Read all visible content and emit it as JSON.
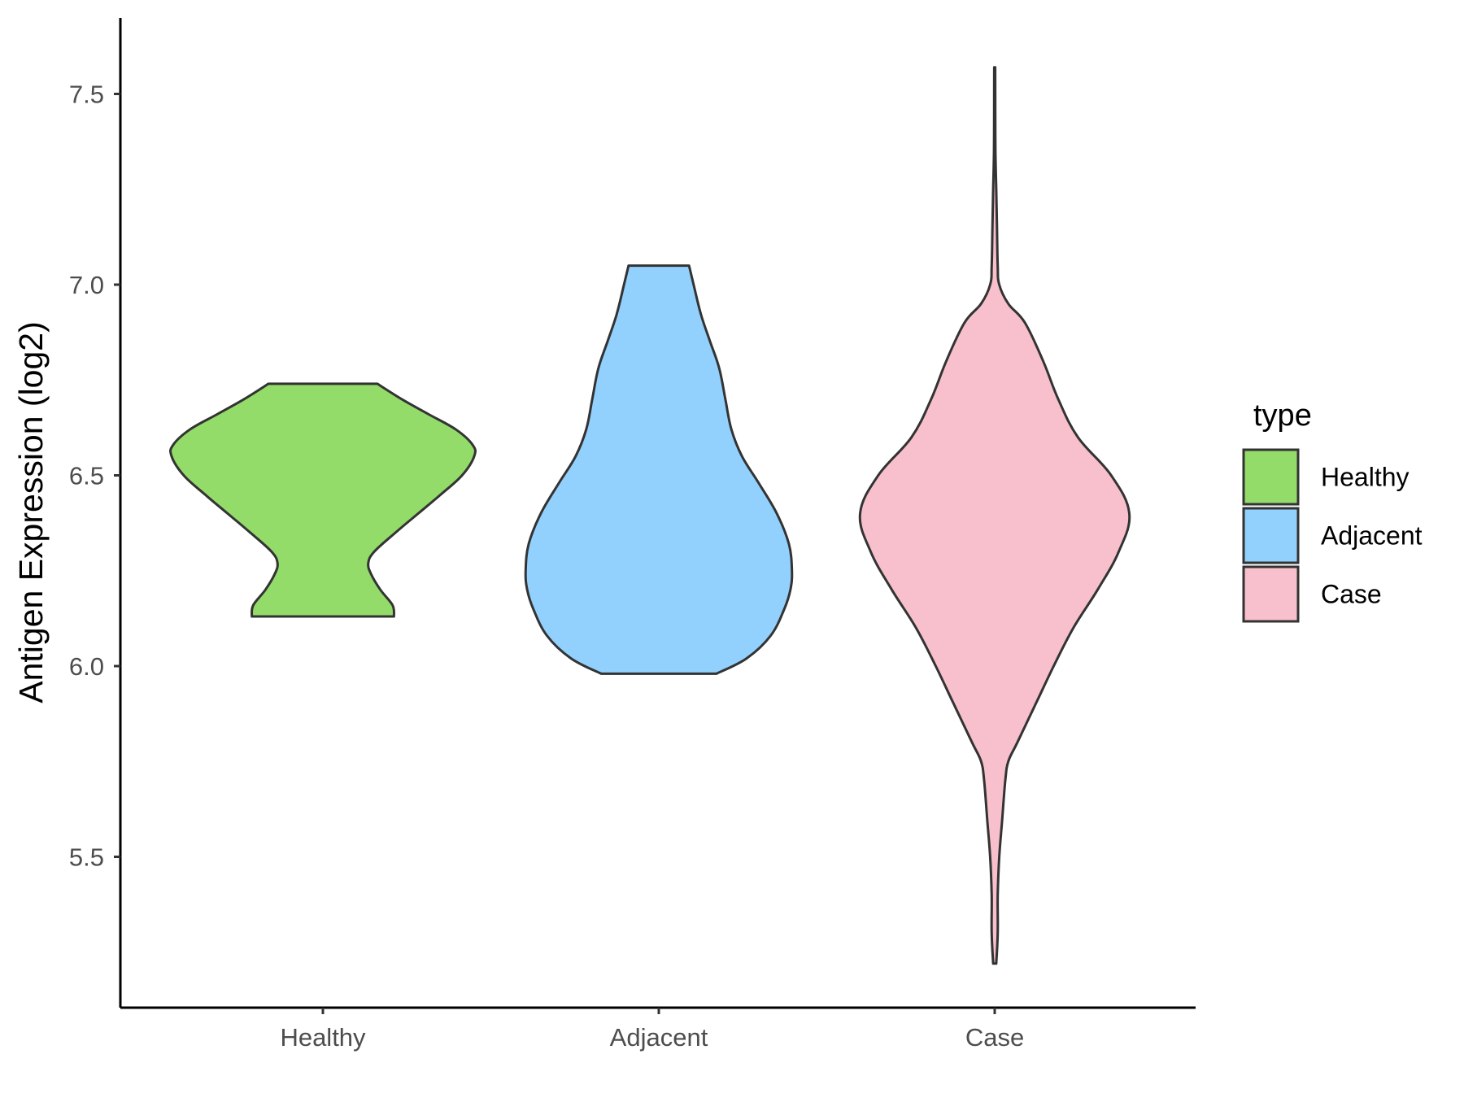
{
  "chart_data": {
    "type": "violin",
    "title": "",
    "xlabel": "",
    "ylabel": "Antigen Expression (log2)",
    "ylim": [
      5.15,
      7.73
    ],
    "yticks": [
      5.5,
      6.0,
      6.5,
      7.0,
      7.5
    ],
    "ytick_labels": [
      "5.5",
      "6.0",
      "6.5",
      "7.0",
      "7.5"
    ],
    "categories": [
      "Healthy",
      "Adjacent",
      "Case"
    ],
    "grid": false,
    "legend": {
      "title": "type",
      "position": "right",
      "entries": [
        "Healthy",
        "Adjacent",
        "Case"
      ]
    },
    "series": [
      {
        "name": "Healthy",
        "color": "#93dc69",
        "range": [
          6.13,
          6.74
        ],
        "density": [
          [
            6.13,
            0.47
          ],
          [
            6.16,
            0.46
          ],
          [
            6.2,
            0.38
          ],
          [
            6.24,
            0.32
          ],
          [
            6.27,
            0.3
          ],
          [
            6.3,
            0.34
          ],
          [
            6.35,
            0.48
          ],
          [
            6.4,
            0.63
          ],
          [
            6.45,
            0.78
          ],
          [
            6.5,
            0.92
          ],
          [
            6.55,
            1.0
          ],
          [
            6.58,
            0.99
          ],
          [
            6.62,
            0.88
          ],
          [
            6.66,
            0.7
          ],
          [
            6.7,
            0.52
          ],
          [
            6.74,
            0.36
          ]
        ]
      },
      {
        "name": "Adjacent",
        "color": "#92d1fe",
        "range": [
          5.98,
          7.05
        ],
        "density": [
          [
            5.98,
            0.38
          ],
          [
            6.02,
            0.58
          ],
          [
            6.08,
            0.74
          ],
          [
            6.15,
            0.83
          ],
          [
            6.2,
            0.87
          ],
          [
            6.25,
            0.88
          ],
          [
            6.32,
            0.86
          ],
          [
            6.4,
            0.78
          ],
          [
            6.48,
            0.66
          ],
          [
            6.55,
            0.55
          ],
          [
            6.62,
            0.48
          ],
          [
            6.7,
            0.44
          ],
          [
            6.78,
            0.4
          ],
          [
            6.85,
            0.34
          ],
          [
            6.92,
            0.28
          ],
          [
            7.0,
            0.23
          ],
          [
            7.05,
            0.2
          ]
        ]
      },
      {
        "name": "Case",
        "color": "#f7c0cc",
        "range": [
          5.22,
          7.57
        ],
        "density": [
          [
            5.22,
            0.01
          ],
          [
            5.3,
            0.02
          ],
          [
            5.4,
            0.02
          ],
          [
            5.5,
            0.03
          ],
          [
            5.6,
            0.05
          ],
          [
            5.7,
            0.07
          ],
          [
            5.75,
            0.09
          ],
          [
            5.8,
            0.15
          ],
          [
            5.9,
            0.27
          ],
          [
            6.0,
            0.39
          ],
          [
            6.1,
            0.52
          ],
          [
            6.2,
            0.68
          ],
          [
            6.3,
            0.82
          ],
          [
            6.4,
            0.89
          ],
          [
            6.5,
            0.77
          ],
          [
            6.6,
            0.55
          ],
          [
            6.7,
            0.42
          ],
          [
            6.8,
            0.32
          ],
          [
            6.9,
            0.2
          ],
          [
            6.95,
            0.09
          ],
          [
            7.0,
            0.03
          ],
          [
            7.05,
            0.02
          ],
          [
            7.15,
            0.015
          ],
          [
            7.25,
            0.01
          ],
          [
            7.35,
            0.005
          ],
          [
            7.45,
            0.004
          ],
          [
            7.57,
            0.003
          ]
        ]
      }
    ]
  }
}
